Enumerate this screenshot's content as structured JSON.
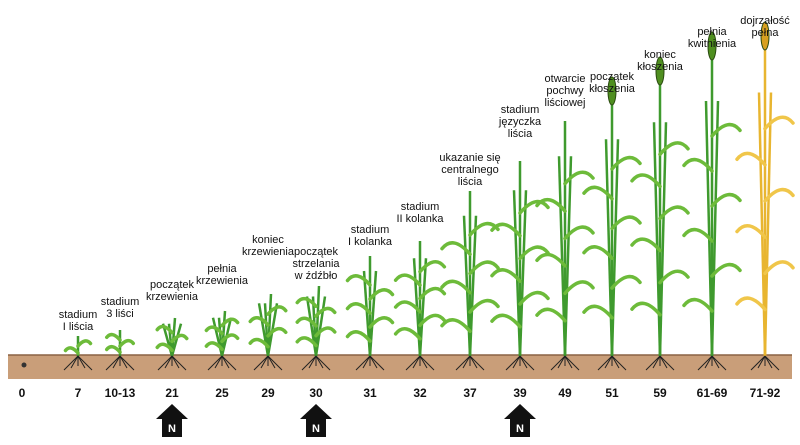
{
  "stages": [
    {
      "code": "0"
    },
    {
      "label": [
        "stadium",
        "I liścia"
      ],
      "code": "7"
    },
    {
      "label": [
        "stadium",
        "3 liści"
      ],
      "code": "10-13"
    },
    {
      "label": [
        "początek",
        "krzewienia"
      ],
      "code": "21"
    },
    {
      "label": [
        "pełnia",
        "krzewienia"
      ],
      "code": "25"
    },
    {
      "label": [
        "koniec",
        "krzewienia"
      ],
      "code": "29"
    },
    {
      "label": [
        "początek",
        "strzelania",
        "w źdźbło"
      ],
      "code": "30"
    },
    {
      "label": [
        "stadium",
        "I kolanka"
      ],
      "code": "31"
    },
    {
      "label": [
        "stadium",
        "II kolanka"
      ],
      "code": "32"
    },
    {
      "label": [
        "ukazanie się",
        "centralnego",
        "liścia"
      ],
      "code": "37"
    },
    {
      "label": [
        "stadium",
        "języczka",
        "liścia"
      ],
      "code": "39"
    },
    {
      "label": [
        "otwarcie",
        "pochwy",
        "liściowej"
      ],
      "code": "49"
    },
    {
      "label": [
        "początek",
        "kłoszenia"
      ],
      "code": "51"
    },
    {
      "label": [
        "koniec",
        "kłoszenia"
      ],
      "code": "59"
    },
    {
      "label": [
        "pełnia",
        "kwitnienia"
      ],
      "code": "61-69"
    },
    {
      "label": [
        "dojrzałość",
        "pełna"
      ],
      "code": "71-92"
    }
  ],
  "arrows": [
    {
      "label": "N"
    },
    {
      "label": "N"
    },
    {
      "label": "N"
    }
  ]
}
